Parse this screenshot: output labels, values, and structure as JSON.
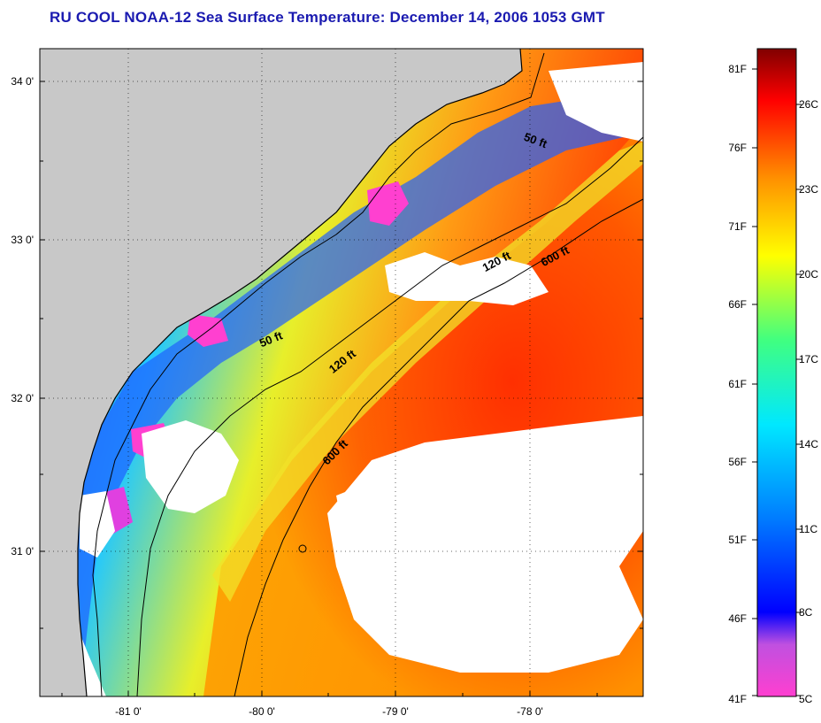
{
  "title": "RU COOL  NOAA-12  Sea Surface Temperature:  December 14, 2006 1053 GMT",
  "map": {
    "latitude_ticks": [
      "34 0'",
      "33 0'",
      "32 0'",
      "31 0'"
    ],
    "longitude_ticks": [
      "-81 0'",
      "-80 0'",
      "-79 0'",
      "-78 0'"
    ],
    "grid": "dotted",
    "contour_labels": {
      "c50_north": "50 ft",
      "c50_south": "50 ft",
      "c120_north": "120 ft",
      "c120_south": "120 ft",
      "c600_north": "600 ft",
      "c600_south": "600 ft"
    },
    "colors": {
      "land": "#c8c8c8",
      "cloud": "#ffffff",
      "contour": "#000000"
    }
  },
  "colorbar": {
    "fahrenheit_labels": [
      "81F",
      "76F",
      "71F",
      "66F",
      "61F",
      "56F",
      "51F",
      "46F",
      "41F"
    ],
    "celsius_labels": [
      "26C",
      "23C",
      "20C",
      "17C",
      "14C",
      "11C",
      "8C",
      "5C"
    ],
    "colors": [
      "#ff3fd0",
      "#c050e0",
      "#0000ff",
      "#0080ff",
      "#00e8ff",
      "#40ff80",
      "#ffff00",
      "#ff9000",
      "#ff0000",
      "#800000"
    ]
  }
}
